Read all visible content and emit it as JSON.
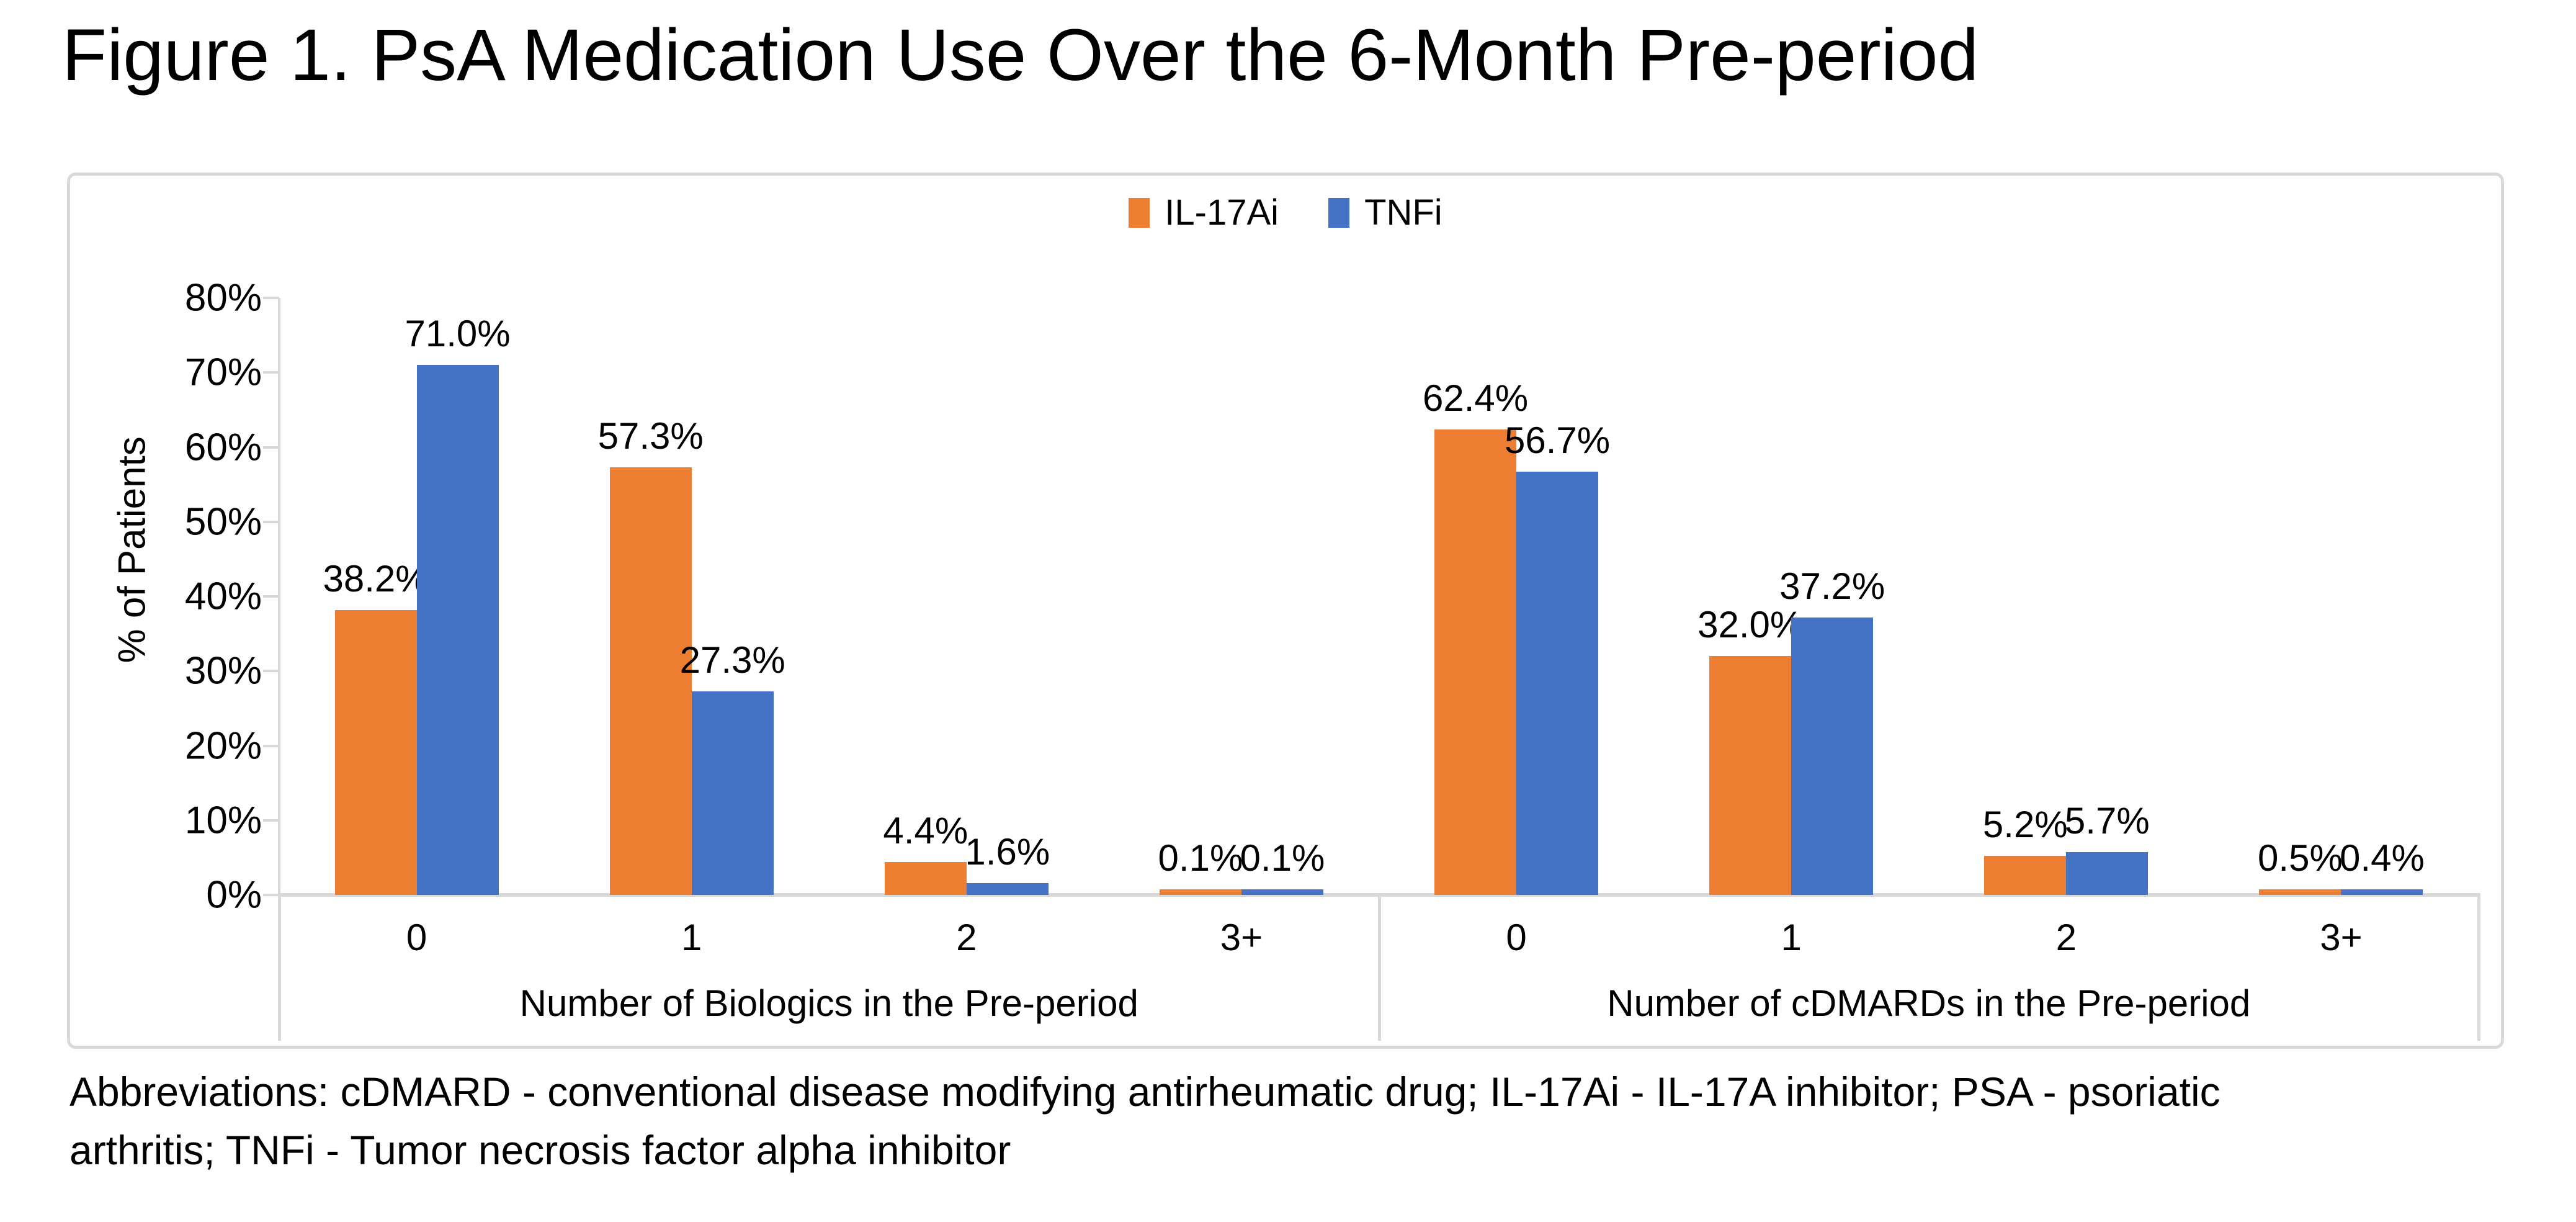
{
  "title": "Figure 1. PsA Medication Use Over the 6-Month Pre-period",
  "footnote": {
    "line1": "Abbreviations: cDMARD - conventional disease modifying antirheumatic drug; IL-17Ai - IL-17A inhibitor; PSA - psoriatic",
    "line2": "arthritis; TNFi - Tumor necrosis factor alpha inhibitor"
  },
  "colors": {
    "orange": "#ED7D31",
    "blue": "#4472C4",
    "axis_gray": "#D9D9D9",
    "text": "#000000"
  },
  "chart_data": {
    "type": "bar",
    "title": "",
    "xlabel": "",
    "ylabel": "% of Patients",
    "ylim": [
      0,
      80
    ],
    "ytick_step": 10,
    "ytick_suffix": "%",
    "grid": false,
    "legend_position": "top-center",
    "value_label_decimals": 1,
    "value_label_suffix": "%",
    "legend": [
      {
        "name": "IL-17Ai",
        "color": "#ED7D31"
      },
      {
        "name": "TNFi",
        "color": "#4472C4"
      }
    ],
    "groups": [
      {
        "label": "Number of Biologics in the Pre-period",
        "categories": [
          "0",
          "1",
          "2",
          "3+"
        ],
        "series": [
          {
            "name": "IL-17Ai",
            "color": "#ED7D31",
            "values": [
              38.2,
              57.3,
              4.4,
              0.1
            ]
          },
          {
            "name": "TNFi",
            "color": "#4472C4",
            "values": [
              71.0,
              27.3,
              1.6,
              0.1
            ]
          }
        ]
      },
      {
        "label": "Number of cDMARDs in the Pre-period",
        "categories": [
          "0",
          "1",
          "2",
          "3+"
        ],
        "series": [
          {
            "name": "IL-17Ai",
            "color": "#ED7D31",
            "values": [
              62.4,
              32.0,
              5.2,
              0.5
            ]
          },
          {
            "name": "TNFi",
            "color": "#4472C4",
            "values": [
              56.7,
              37.2,
              5.7,
              0.4
            ]
          }
        ]
      }
    ]
  }
}
